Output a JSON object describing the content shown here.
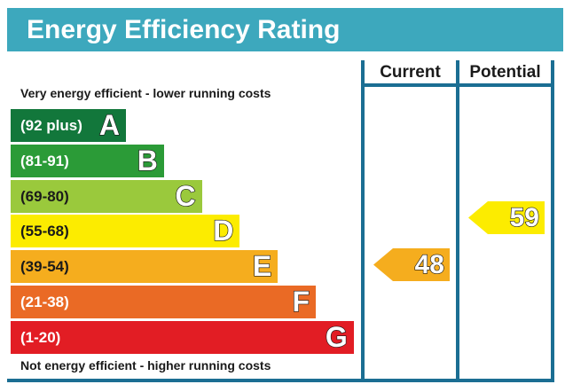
{
  "title": "Energy Efficiency Rating",
  "columns": {
    "current": "Current",
    "potential": "Potential"
  },
  "captions": {
    "top": "Very energy efficient - lower running costs",
    "bottom": "Not energy efficient - higher running costs"
  },
  "chart_data": {
    "type": "bar",
    "title": "Energy Efficiency Rating",
    "bands": [
      {
        "range": "(92 plus)",
        "letter": "A",
        "color": "#12773b"
      },
      {
        "range": "(81-91)",
        "letter": "B",
        "color": "#2b9b37"
      },
      {
        "range": "(69-80)",
        "letter": "C",
        "color": "#9ac93c"
      },
      {
        "range": "(55-68)",
        "letter": "D",
        "color": "#fcec00"
      },
      {
        "range": "(39-54)",
        "letter": "E",
        "color": "#f5ad1e"
      },
      {
        "range": "(21-38)",
        "letter": "F",
        "color": "#ea6a25"
      },
      {
        "range": "(1-20)",
        "letter": "G",
        "color": "#e21d24"
      }
    ],
    "ratings": [
      {
        "column": "Current",
        "value": 48,
        "band": "E",
        "color": "#f5ad1e"
      },
      {
        "column": "Potential",
        "value": 59,
        "band": "D",
        "color": "#fcec00"
      }
    ]
  }
}
